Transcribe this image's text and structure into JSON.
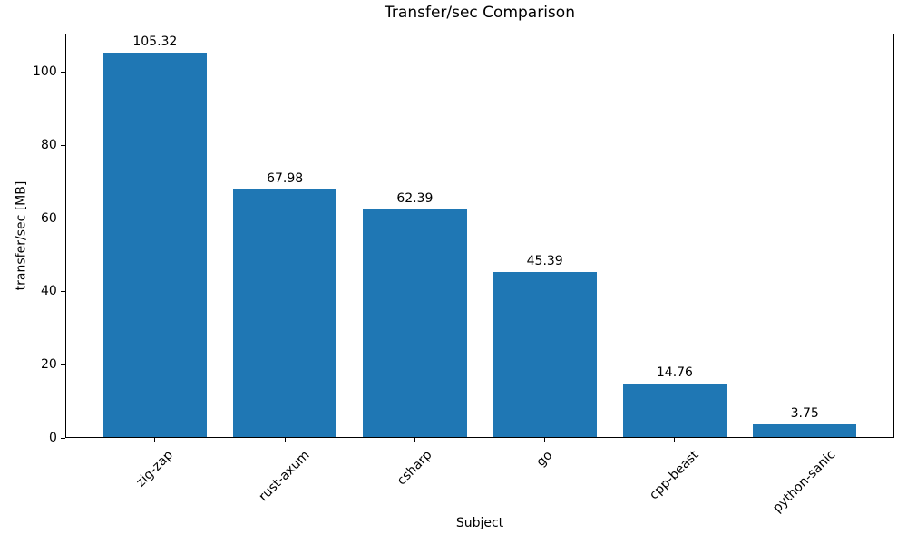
{
  "chart_data": {
    "type": "bar",
    "title": "Transfer/sec Comparison",
    "xlabel": "Subject",
    "ylabel": "transfer/sec [MB]",
    "categories": [
      "zig-zap",
      "rust-axum",
      "csharp",
      "go",
      "cpp-beast",
      "python-sanic"
    ],
    "values": [
      105.32,
      67.98,
      62.39,
      45.39,
      14.76,
      3.75
    ],
    "value_labels": [
      "105.32",
      "67.98",
      "62.39",
      "45.39",
      "14.76",
      "3.75"
    ],
    "yticks": [
      0,
      20,
      40,
      60,
      80,
      100
    ],
    "ytick_labels": [
      "0",
      "20",
      "40",
      "60",
      "80",
      "100"
    ],
    "ylim": [
      0,
      110.59
    ],
    "x_tick_rotation_deg": 45,
    "bar_label_position": "above",
    "legend_position": "none",
    "grid": false,
    "bar_color": "#1f77b4",
    "background_color": "#ffffff",
    "text_color": "#000000",
    "axis_color": "#000000"
  }
}
